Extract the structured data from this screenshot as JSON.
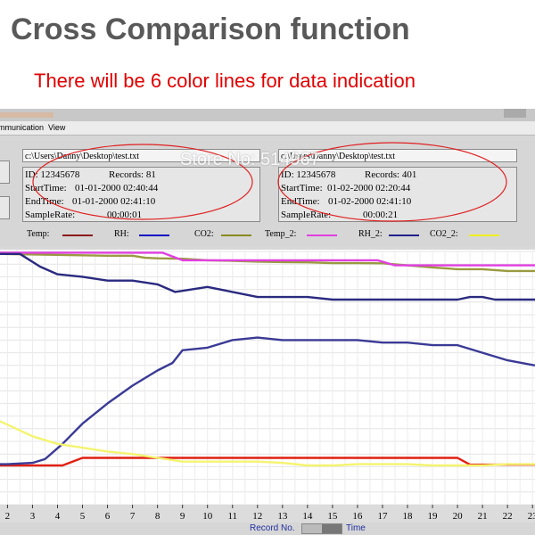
{
  "headline": "Cross Comparison function",
  "subline": "There will be 6 color lines for data indication",
  "menu": {
    "communication": "mmunication",
    "view": "View"
  },
  "file1": {
    "path": "c:\\Users\\Danny\\Desktop\\test.txt",
    "id_label": "ID: 12345678",
    "records_label": "Records: 81",
    "start_label": "StartTime:",
    "start_value": "01-01-2000 02:40:44",
    "end_label": "EndTime:",
    "end_value": "01-01-2000 02:41:10",
    "rate_label": "SampleRate:",
    "rate_value": "00:00:01"
  },
  "file2": {
    "path": "c:\\Users\\Danny\\Desktop\\test.txt",
    "id_label": "ID: 12345678",
    "records_label": "Records: 401",
    "start_label": "StartTime:",
    "start_value": "01-02-2000 02:20:44",
    "end_label": "EndTime:",
    "end_value": "01-02-2000 02:41:10",
    "rate_label": "SampleRate:",
    "rate_value": "00:00:21"
  },
  "legend": [
    {
      "label": "Temp:",
      "color": "#8b1a1a"
    },
    {
      "label": "RH:",
      "color": "#1010c0"
    },
    {
      "label": "CO2:",
      "color": "#8a8a20"
    },
    {
      "label": "Temp_2:",
      "color": "#e040e0"
    },
    {
      "label": "RH_2:",
      "color": "#20208a"
    },
    {
      "label": "CO2_2:",
      "color": "#f0f020"
    }
  ],
  "watermark": "Store No: 514967",
  "bottom": {
    "record_label": "Record No.",
    "time_label": "Time"
  },
  "chart_data": {
    "type": "line",
    "x_ticks": [
      "2",
      "3",
      "4",
      "5",
      "6",
      "7",
      "8",
      "9",
      "10",
      "11",
      "12",
      "13",
      "14",
      "15",
      "16",
      "17",
      "18",
      "19",
      "20",
      "21",
      "22",
      "23"
    ],
    "xlim": [
      1.7,
      23.1
    ],
    "ylim": [
      0,
      100
    ],
    "grid": true,
    "series": [
      {
        "name": "Temp",
        "color": "#e02010",
        "x": [
          1.7,
          4.2,
          5.0,
          20.0,
          20.5,
          23.1
        ],
        "y": [
          15.5,
          15.5,
          18.5,
          18.5,
          15.8,
          15.8
        ]
      },
      {
        "name": "CO2",
        "color": "#9a9a40",
        "x": [
          1.7,
          5,
          6,
          7,
          7.5,
          8,
          9,
          10,
          11,
          12,
          13,
          14,
          15,
          16,
          17,
          18,
          19,
          20,
          21,
          22,
          23.1
        ],
        "y": [
          99,
          98.5,
          98.3,
          98.3,
          97.5,
          97.3,
          97.1,
          96.5,
          96.3,
          96,
          95.8,
          95.7,
          95.4,
          95.4,
          95.3,
          94.5,
          93.7,
          93,
          93,
          92.3,
          92.3
        ]
      },
      {
        "name": "Temp_2",
        "color": "#e040e0",
        "x": [
          1.7,
          7.8,
          8.2,
          9,
          10,
          11,
          14,
          15,
          15.5,
          16.8,
          17.5,
          18,
          19,
          20,
          21,
          22,
          23.1
        ],
        "y": [
          99.5,
          99.5,
          99.5,
          96.5,
          96.5,
          96.5,
          96.5,
          96.5,
          96.5,
          96.5,
          94.5,
          94.5,
          94.5,
          94.5,
          94.5,
          94.5,
          94.5
        ]
      },
      {
        "name": "RH_2",
        "color": "#2a2a80",
        "x": [
          1.7,
          2.5,
          3.3,
          4,
          5,
          6,
          7,
          8,
          8.7,
          10,
          11,
          12,
          13,
          14,
          15,
          16,
          17,
          18,
          19,
          20,
          20.5,
          21,
          21.5,
          22,
          23.1
        ],
        "y": [
          99,
          99,
          94,
          91,
          90,
          88.5,
          88.5,
          87,
          84,
          86,
          84,
          82,
          82,
          82,
          81,
          81,
          81,
          81,
          81,
          81,
          82,
          82,
          81,
          81,
          81
        ]
      },
      {
        "name": "RH",
        "color": "#3a3a96",
        "x": [
          1.7,
          2,
          3,
          3.5,
          4.2,
          5,
          6,
          7,
          8,
          8.6,
          9,
          10,
          11,
          12,
          13,
          14,
          15,
          16,
          17,
          18,
          19,
          20,
          21,
          22,
          23.1
        ],
        "y": [
          16,
          16,
          16.5,
          18,
          24,
          32,
          40,
          47,
          53,
          56,
          61,
          62,
          65,
          66,
          65,
          65,
          65,
          65,
          64,
          64,
          63,
          63,
          60,
          57,
          55
        ]
      },
      {
        "name": "CO2_2",
        "color": "#f4f470",
        "x": [
          1.7,
          3,
          4,
          5,
          6,
          7,
          8,
          9,
          10,
          11,
          12,
          13,
          14,
          15,
          16,
          17,
          18,
          19,
          20,
          21,
          22,
          23.1
        ],
        "y": [
          33,
          27,
          24,
          22.5,
          21,
          20,
          18.5,
          17,
          17,
          17,
          17,
          16.5,
          15.5,
          15.5,
          16,
          16,
          16,
          15.5,
          15.5,
          15.5,
          16,
          16
        ]
      }
    ]
  }
}
